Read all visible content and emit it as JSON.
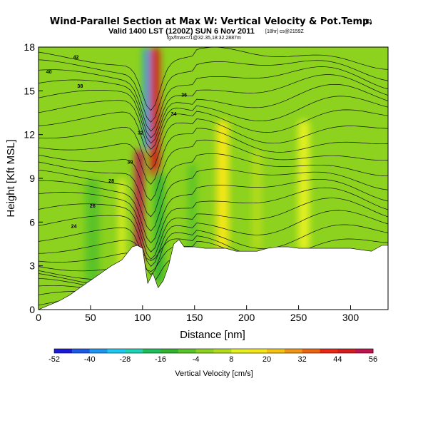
{
  "header": {
    "title": "Wind-Parallel Section at Max W: Vertical Velocity & Pot.Temp.",
    "copyright": "(C)",
    "valid_line": "Valid 1400 LST (1200Z) SUN 6 Nov 2011",
    "valid_suffix": "[18hr] cs@2159Z",
    "subline": "fgx/fmax=/1@32.35,18:32.2887m"
  },
  "chart_data": {
    "type": "heatmap",
    "title": "Wind-Parallel Section at Max W: Vertical Velocity & Pot.Temp.",
    "xlabel": "Distance [nm]",
    "ylabel": "Height [Kft MSL]",
    "xlim": [
      0,
      336
    ],
    "ylim": [
      0,
      18
    ],
    "x_ticks": [
      "0",
      "50",
      "100",
      "150",
      "200",
      "250",
      "300"
    ],
    "y_ticks": [
      "0",
      "3",
      "6",
      "9",
      "12",
      "15",
      "18"
    ],
    "colorbar": {
      "label": "Vertical Velocity [cm/s]",
      "ticks": [
        "-52",
        "-40",
        "-28",
        "-16",
        "-4",
        "8",
        "20",
        "32",
        "44",
        "56"
      ],
      "colors": [
        "#1a1ad6",
        "#1a5ae6",
        "#1e96f0",
        "#1ec8f0",
        "#20d2b4",
        "#1ebe5a",
        "#32b432",
        "#5ac328",
        "#8cd21e",
        "#b4dc1e",
        "#e6f020",
        "#f5e619",
        "#f5c314",
        "#f09614",
        "#eb6414",
        "#e62814",
        "#d21e1e",
        "#be1450"
      ],
      "range": [
        -52,
        56
      ]
    },
    "velocity_features": [
      {
        "x": 97,
        "ybot": 3.0,
        "ytop": 11.0,
        "w": 8,
        "value": 52
      },
      {
        "x": 112,
        "ybot": 9.0,
        "ytop": 18.0,
        "w": 9,
        "value": 48
      },
      {
        "x": 104,
        "ybot": 11.0,
        "ytop": 18.0,
        "w": 6,
        "value": -35
      },
      {
        "x": 116,
        "ybot": 1.8,
        "ytop": 9.5,
        "w": 9,
        "value": -14
      },
      {
        "x": 177,
        "ybot": 4.0,
        "ytop": 13.0,
        "w": 12,
        "value": 14
      },
      {
        "x": 255,
        "ybot": 4.0,
        "ytop": 13.0,
        "w": 11,
        "value": 11
      },
      {
        "x": 210,
        "ybot": 4.0,
        "ytop": 11.0,
        "w": 9,
        "value": 5
      },
      {
        "x": 52,
        "ybot": 0.5,
        "ytop": 9.0,
        "w": 14,
        "value": -5
      },
      {
        "x": 148,
        "ybot": 3.0,
        "ytop": 10.0,
        "w": 8,
        "value": -6
      },
      {
        "x": 80,
        "ybot": 3.0,
        "ytop": 9.0,
        "w": 6,
        "value": 10
      }
    ],
    "terrain": {
      "x": [
        0,
        10,
        20,
        30,
        40,
        50,
        60,
        70,
        80,
        90,
        95,
        100,
        105,
        110,
        115,
        120,
        125,
        130,
        135,
        140,
        150,
        160,
        170,
        180,
        190,
        200,
        210,
        220,
        230,
        240,
        250,
        260,
        270,
        280,
        290,
        300,
        310,
        320,
        330,
        336
      ],
      "height_kft": [
        0,
        0.3,
        0.6,
        1.0,
        1.5,
        2.0,
        2.5,
        3.0,
        3.4,
        4.3,
        4.4,
        4.2,
        1.8,
        2.5,
        1.5,
        2.0,
        3.0,
        4.5,
        4.8,
        4.3,
        4.3,
        4.2,
        4.2,
        4.2,
        4.0,
        4.0,
        4.0,
        4.2,
        4.3,
        4.3,
        4.2,
        4.2,
        4.2,
        4.2,
        4.2,
        4.2,
        4.1,
        4.0,
        4.4,
        4.4
      ]
    },
    "theta_contour_labels": [
      "24",
      "26",
      "28",
      "30",
      "32",
      "34",
      "36",
      "38",
      "40",
      "42"
    ]
  }
}
